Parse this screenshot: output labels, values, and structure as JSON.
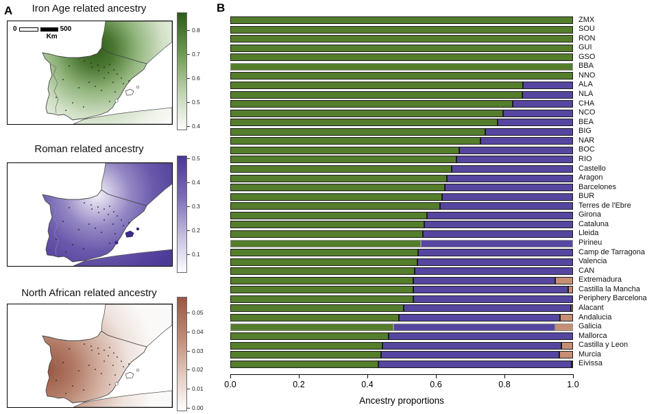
{
  "panels": {
    "a_label": "A",
    "b_label": "B"
  },
  "chart_data": [
    {
      "type": "bar",
      "orientation": "horizontal",
      "stacked": true,
      "title": "",
      "xlabel": "Ancestry proportions",
      "xlim": [
        0.0,
        1.0
      ],
      "x_ticks": [
        "0.0",
        "0.2",
        "0.4",
        "0.6",
        "0.8",
        "1.0"
      ],
      "colors": [
        "#547d2c",
        "#5646a0",
        "#c68e74"
      ],
      "bar_border_color": "#1c1c1c",
      "gray_border_color": "#909090",
      "gray_border_rows": [
        "BBA",
        "Pirineu",
        "Galicia"
      ],
      "categories": [
        "ZMX",
        "SOU",
        "RON",
        "GUI",
        "GSO",
        "BBA",
        "NNO",
        "ALA",
        "NLA",
        "CHA",
        "NCO",
        "BEA",
        "BIG",
        "NAR",
        "BOC",
        "RIO",
        "Castello",
        "Aragon",
        "Barcelones",
        "BUR",
        "Terres de l'Ebre",
        "Girona",
        "Cataluna",
        "Lleida",
        "Pirineu",
        "Camp de Tarragona",
        "Valencia",
        "CAN",
        "Extremadura",
        "Castilla la Mancha",
        "Periphery Barcelona",
        "Alacant",
        "Andalucia",
        "Galicia",
        "Mallorca",
        "Castilla y Leon",
        "Murcia",
        "Eivissa"
      ],
      "series": [
        {
          "key": "iron-age",
          "name": "Iron Age related",
          "values": [
            1,
            1,
            1,
            1,
            1,
            1,
            1,
            0.854,
            0.852,
            0.823,
            0.796,
            0.78,
            0.744,
            0.73,
            0.668,
            0.66,
            0.646,
            0.632,
            0.626,
            0.618,
            0.612,
            0.574,
            0.566,
            0.562,
            0.556,
            0.548,
            0.546,
            0.538,
            0.534,
            0.534,
            0.534,
            0.506,
            0.492,
            0.476,
            0.462,
            0.444,
            0.44,
            0.432
          ]
        },
        {
          "key": "roman",
          "name": "Roman related",
          "values": [
            0,
            0,
            0,
            0,
            0,
            0,
            0,
            0.146,
            0.148,
            0.177,
            0.204,
            0.22,
            0.256,
            0.27,
            0.332,
            0.34,
            0.354,
            0.368,
            0.374,
            0.382,
            0.388,
            0.426,
            0.434,
            0.438,
            0.444,
            0.452,
            0.454,
            0.462,
            0.413,
            0.451,
            0.466,
            0.487,
            0.469,
            0.471,
            0.538,
            0.522,
            0.52,
            0.563
          ]
        },
        {
          "key": "north-african",
          "name": "North African related",
          "values": [
            0,
            0,
            0,
            0,
            0,
            0,
            0,
            0,
            0,
            0,
            0,
            0,
            0,
            0,
            0,
            0,
            0,
            0,
            0,
            0,
            0,
            0,
            0,
            0,
            0,
            0,
            0,
            0,
            0.053,
            0.015,
            0,
            0.007,
            0.039,
            0.053,
            0,
            0.034,
            0.04,
            0.005
          ]
        }
      ]
    },
    {
      "type": "heatmap",
      "title": "Iron Age related ancestry",
      "colorbar": {
        "ticks": [
          "0.8",
          "0.7",
          "0.6",
          "0.5",
          "0.4"
        ],
        "range": [
          0.875,
          0.39
        ],
        "color_dark": "#2e5c1a"
      },
      "scalebar": {
        "zero": "0",
        "end": "500",
        "unit": "Km"
      }
    },
    {
      "type": "heatmap",
      "title": "Roman related ancestry",
      "colorbar": {
        "ticks": [
          "0.5",
          "0.4",
          "0.3",
          "0.2",
          "0.1"
        ],
        "range": [
          0.51,
          0.03
        ],
        "color_dark": "#4a3794"
      }
    },
    {
      "type": "heatmap",
      "title": "North African related ancestry",
      "colorbar": {
        "ticks": [
          "0.05",
          "0.04",
          "0.03",
          "0.02",
          "0.01",
          "0.00"
        ],
        "range": [
          0.0585,
          -0.0012
        ],
        "color_dark": "#9a5743"
      }
    }
  ]
}
